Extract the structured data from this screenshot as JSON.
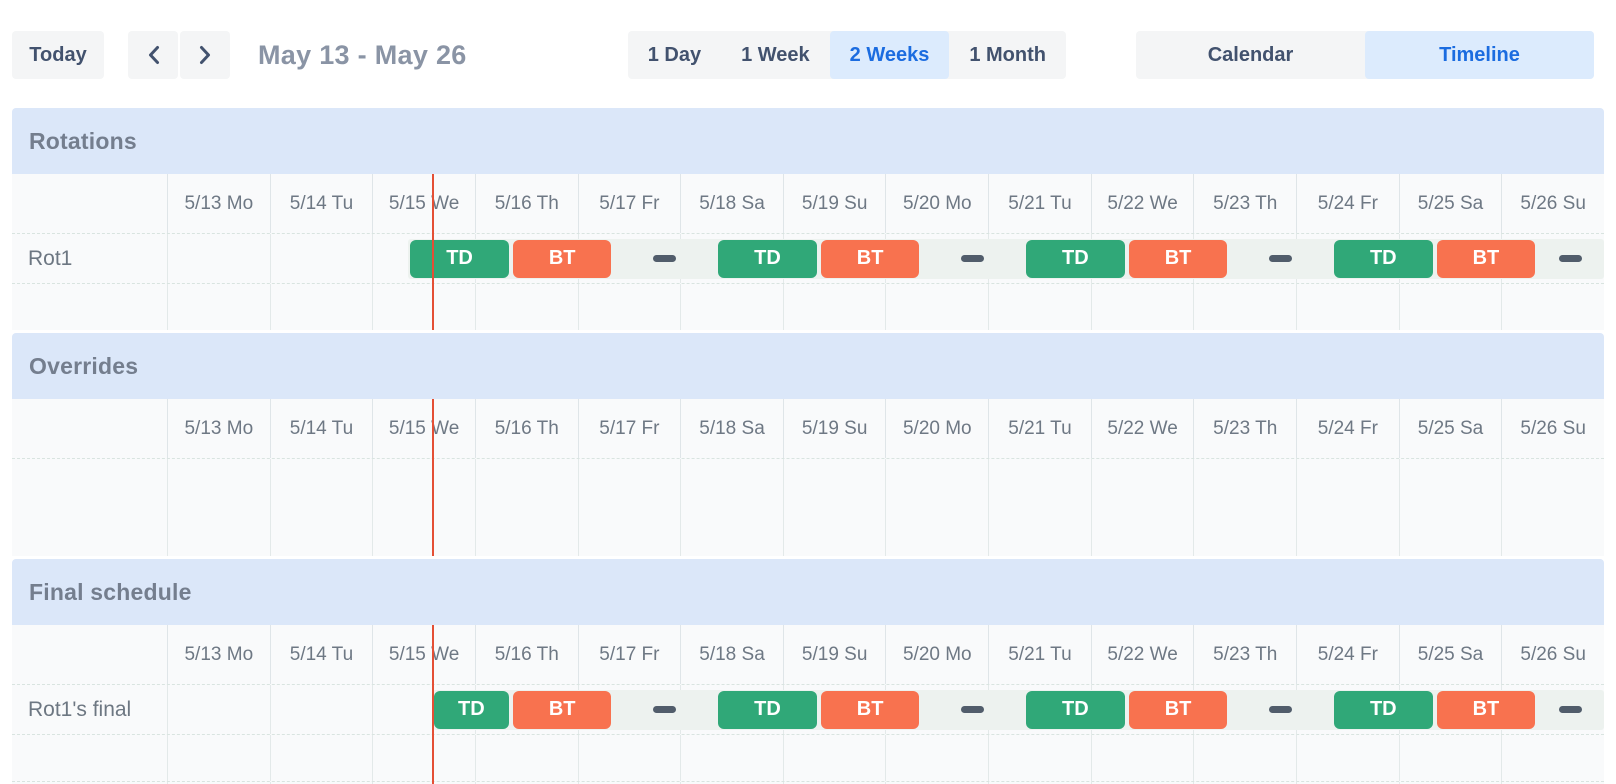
{
  "toolbar": {
    "today_label": "Today",
    "title": "May 13 - May 26",
    "icons": {
      "prev": "chevron-left",
      "next": "chevron-right"
    },
    "range_options": [
      {
        "label": "1 Day",
        "selected": false
      },
      {
        "label": "1 Week",
        "selected": false
      },
      {
        "label": "2 Weeks",
        "selected": true
      },
      {
        "label": "1 Month",
        "selected": false
      }
    ],
    "view_options": [
      {
        "label": "Calendar",
        "selected": false
      },
      {
        "label": "Timeline",
        "selected": true
      }
    ]
  },
  "colors": {
    "header-bg": "#dbe7f9",
    "selected-bg": "#dcebfd",
    "selected-text": "#1b6ce0",
    "btn-bg": "#f4f5f6",
    "btn-text": "#42526e",
    "title-text": "#8a94a5",
    "muted-text": "#6e7884",
    "now-line": "#e44f35",
    "strip": "#edf2ef",
    "dash": "#515d6b",
    "td": "#30a878",
    "bt": "#f8724f"
  },
  "timeline": {
    "day_labels": [
      "5/13 Mo",
      "5/14 Tu",
      "5/15 We",
      "5/16 Th",
      "5/17 Fr",
      "5/18 Sa",
      "5/19 Su",
      "5/20 Mo",
      "5/21 Tu",
      "5/22 We",
      "5/23 Th",
      "5/24 Fr",
      "5/25 Sa",
      "5/26 Su"
    ],
    "current_time_day": 2.58,
    "no_on_call_icon": "dash"
  },
  "sections": [
    {
      "title": "Rotations",
      "rows": [
        {
          "kind": "lane",
          "label": "Rot1",
          "strip_start_day": 2.35,
          "blocks": [
            {
              "kind": "shift",
              "label": "TD",
              "start": 2.35,
              "end": 3.35
            },
            {
              "kind": "shift",
              "label": "BT",
              "start": 3.35,
              "end": 4.35
            },
            {
              "kind": "gap",
              "start": 4.35,
              "end": 5.35
            },
            {
              "kind": "shift",
              "label": "TD",
              "start": 5.35,
              "end": 6.35
            },
            {
              "kind": "shift",
              "label": "BT",
              "start": 6.35,
              "end": 7.35
            },
            {
              "kind": "gap",
              "start": 7.35,
              "end": 8.35
            },
            {
              "kind": "shift",
              "label": "TD",
              "start": 8.35,
              "end": 9.35
            },
            {
              "kind": "shift",
              "label": "BT",
              "start": 9.35,
              "end": 10.35
            },
            {
              "kind": "gap",
              "start": 10.35,
              "end": 11.35
            },
            {
              "kind": "shift",
              "label": "TD",
              "start": 11.35,
              "end": 12.35
            },
            {
              "kind": "shift",
              "label": "BT",
              "start": 12.35,
              "end": 13.35
            },
            {
              "kind": "gap",
              "start": 13.35,
              "end": 14
            }
          ]
        },
        {
          "kind": "spacer",
          "label": "",
          "blocks": []
        }
      ]
    },
    {
      "title": "Overrides",
      "rows": [
        {
          "kind": "spacer-tall",
          "label": "",
          "blocks": []
        }
      ]
    },
    {
      "title": "Final schedule",
      "rows": [
        {
          "kind": "lane",
          "label": "Rot1's final",
          "strip_start_day": 2.58,
          "blocks": [
            {
              "kind": "shift",
              "label": "TD",
              "start": 2.58,
              "end": 3.35
            },
            {
              "kind": "shift",
              "label": "BT",
              "start": 3.35,
              "end": 4.35
            },
            {
              "kind": "gap",
              "start": 4.35,
              "end": 5.35
            },
            {
              "kind": "shift",
              "label": "TD",
              "start": 5.35,
              "end": 6.35
            },
            {
              "kind": "shift",
              "label": "BT",
              "start": 6.35,
              "end": 7.35
            },
            {
              "kind": "gap",
              "start": 7.35,
              "end": 8.35
            },
            {
              "kind": "shift",
              "label": "TD",
              "start": 8.35,
              "end": 9.35
            },
            {
              "kind": "shift",
              "label": "BT",
              "start": 9.35,
              "end": 10.35
            },
            {
              "kind": "gap",
              "start": 10.35,
              "end": 11.35
            },
            {
              "kind": "shift",
              "label": "TD",
              "start": 11.35,
              "end": 12.35
            },
            {
              "kind": "shift",
              "label": "BT",
              "start": 12.35,
              "end": 13.35
            },
            {
              "kind": "gap",
              "start": 13.35,
              "end": 14
            }
          ]
        },
        {
          "kind": "spacer",
          "label": "",
          "blocks": []
        },
        {
          "kind": "spacer-end",
          "label": "",
          "blocks": []
        }
      ]
    }
  ]
}
